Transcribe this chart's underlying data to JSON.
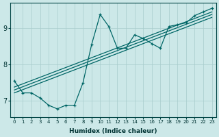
{
  "xlabel": "Humidex (Indice chaleur)",
  "xlim": [
    -0.5,
    23.5
  ],
  "ylim": [
    6.55,
    9.7
  ],
  "bg_color": "#cce8e8",
  "grid_color_v": "#a8cccc",
  "grid_color_h": "#a8cccc",
  "line_color": "#006666",
  "xticks": [
    0,
    1,
    2,
    3,
    4,
    5,
    6,
    7,
    8,
    9,
    10,
    11,
    12,
    13,
    14,
    15,
    16,
    17,
    18,
    19,
    20,
    21,
    22,
    23
  ],
  "yticks": [
    7,
    8,
    9
  ],
  "wavy_line": {
    "x": [
      0,
      1,
      2,
      3,
      4,
      5,
      6,
      7,
      8,
      9,
      10,
      11,
      12,
      13,
      14,
      15,
      16,
      17,
      18,
      19,
      20,
      21,
      22,
      23
    ],
    "y": [
      7.55,
      7.22,
      7.22,
      7.08,
      6.88,
      6.78,
      6.88,
      6.88,
      7.5,
      8.55,
      9.38,
      9.05,
      8.45,
      8.45,
      8.82,
      8.72,
      8.58,
      8.45,
      9.05,
      9.1,
      9.15,
      9.35,
      9.45,
      9.55
    ]
  },
  "straight_lines": [
    {
      "x": [
        0,
        23
      ],
      "y": [
        7.38,
        9.45
      ]
    },
    {
      "x": [
        0,
        23
      ],
      "y": [
        7.3,
        9.38
      ]
    },
    {
      "x": [
        0,
        23
      ],
      "y": [
        7.22,
        9.3
      ]
    }
  ]
}
